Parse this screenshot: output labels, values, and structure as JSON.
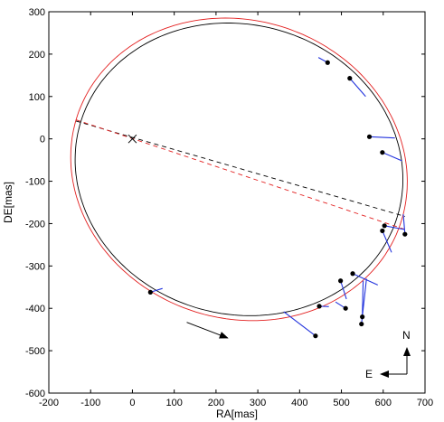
{
  "chart_data": {
    "type": "scatter",
    "title": "",
    "xlabel": "RA[mas]",
    "ylabel": "DE[mas]",
    "xlim": [
      -200,
      700
    ],
    "ylim": [
      -600,
      300
    ],
    "xticks": [
      -200,
      -100,
      0,
      100,
      200,
      300,
      400,
      500,
      600,
      700
    ],
    "yticks": [
      -600,
      -500,
      -400,
      -300,
      -200,
      -100,
      0,
      100,
      200,
      300
    ],
    "grid": false,
    "x_inverted": false,
    "orbits": [
      {
        "color": "#000000",
        "center": [
          255,
          -72
        ],
        "semi_axes": [
          395,
          342
        ],
        "rotation_deg": -14
      },
      {
        "color": "#e32020",
        "center": [
          255,
          -72
        ],
        "semi_axes": [
          407,
          352
        ],
        "rotation_deg": -17
      }
    ],
    "line_of_nodes": [
      {
        "color": "#000000",
        "style": "dashed",
        "from": [
          -135,
          42
        ],
        "to": [
          652,
          -183
        ]
      },
      {
        "color": "#e32020",
        "style": "dashed",
        "from": [
          -135,
          45
        ],
        "to": [
          650,
          -213
        ]
      }
    ],
    "primary_star": {
      "x": 0,
      "y": 0,
      "marker": "x"
    },
    "observations": [
      {
        "x": 467,
        "y": 180,
        "fit_x": 445,
        "fit_y": 192
      },
      {
        "x": 520,
        "y": 143,
        "fit_x": 558,
        "fit_y": 100
      },
      {
        "x": 567,
        "y": 5,
        "fit_x": 628,
        "fit_y": 2
      },
      {
        "x": 598,
        "y": -32,
        "fit_x": 645,
        "fit_y": -52
      },
      {
        "x": 603,
        "y": -205,
        "fit_x": 651,
        "fit_y": -214
      },
      {
        "x": 598,
        "y": -217,
        "fit_x": 620,
        "fit_y": -268
      },
      {
        "x": 652,
        "y": -225,
        "fit_x": 648,
        "fit_y": -178
      },
      {
        "x": 527,
        "y": -318,
        "fit_x": 587,
        "fit_y": -345
      },
      {
        "x": 498,
        "y": -335,
        "fit_x": 512,
        "fit_y": -378
      },
      {
        "x": 510,
        "y": -400,
        "fit_x": 486,
        "fit_y": -385
      },
      {
        "x": 447,
        "y": -395,
        "fit_x": 470,
        "fit_y": -396
      },
      {
        "x": 550,
        "y": -420,
        "fit_x": 552,
        "fit_y": -335
      },
      {
        "x": 548,
        "y": -437,
        "fit_x": 560,
        "fit_y": -330
      },
      {
        "x": 438,
        "y": -465,
        "fit_x": 362,
        "fit_y": -408
      },
      {
        "x": 43,
        "y": -362,
        "fit_x": 72,
        "fit_y": -353
      }
    ],
    "motion_arrow": {
      "from": [
        130,
        -433
      ],
      "to": [
        228,
        -470
      ]
    },
    "compass": {
      "north": "N",
      "east": "E"
    }
  }
}
